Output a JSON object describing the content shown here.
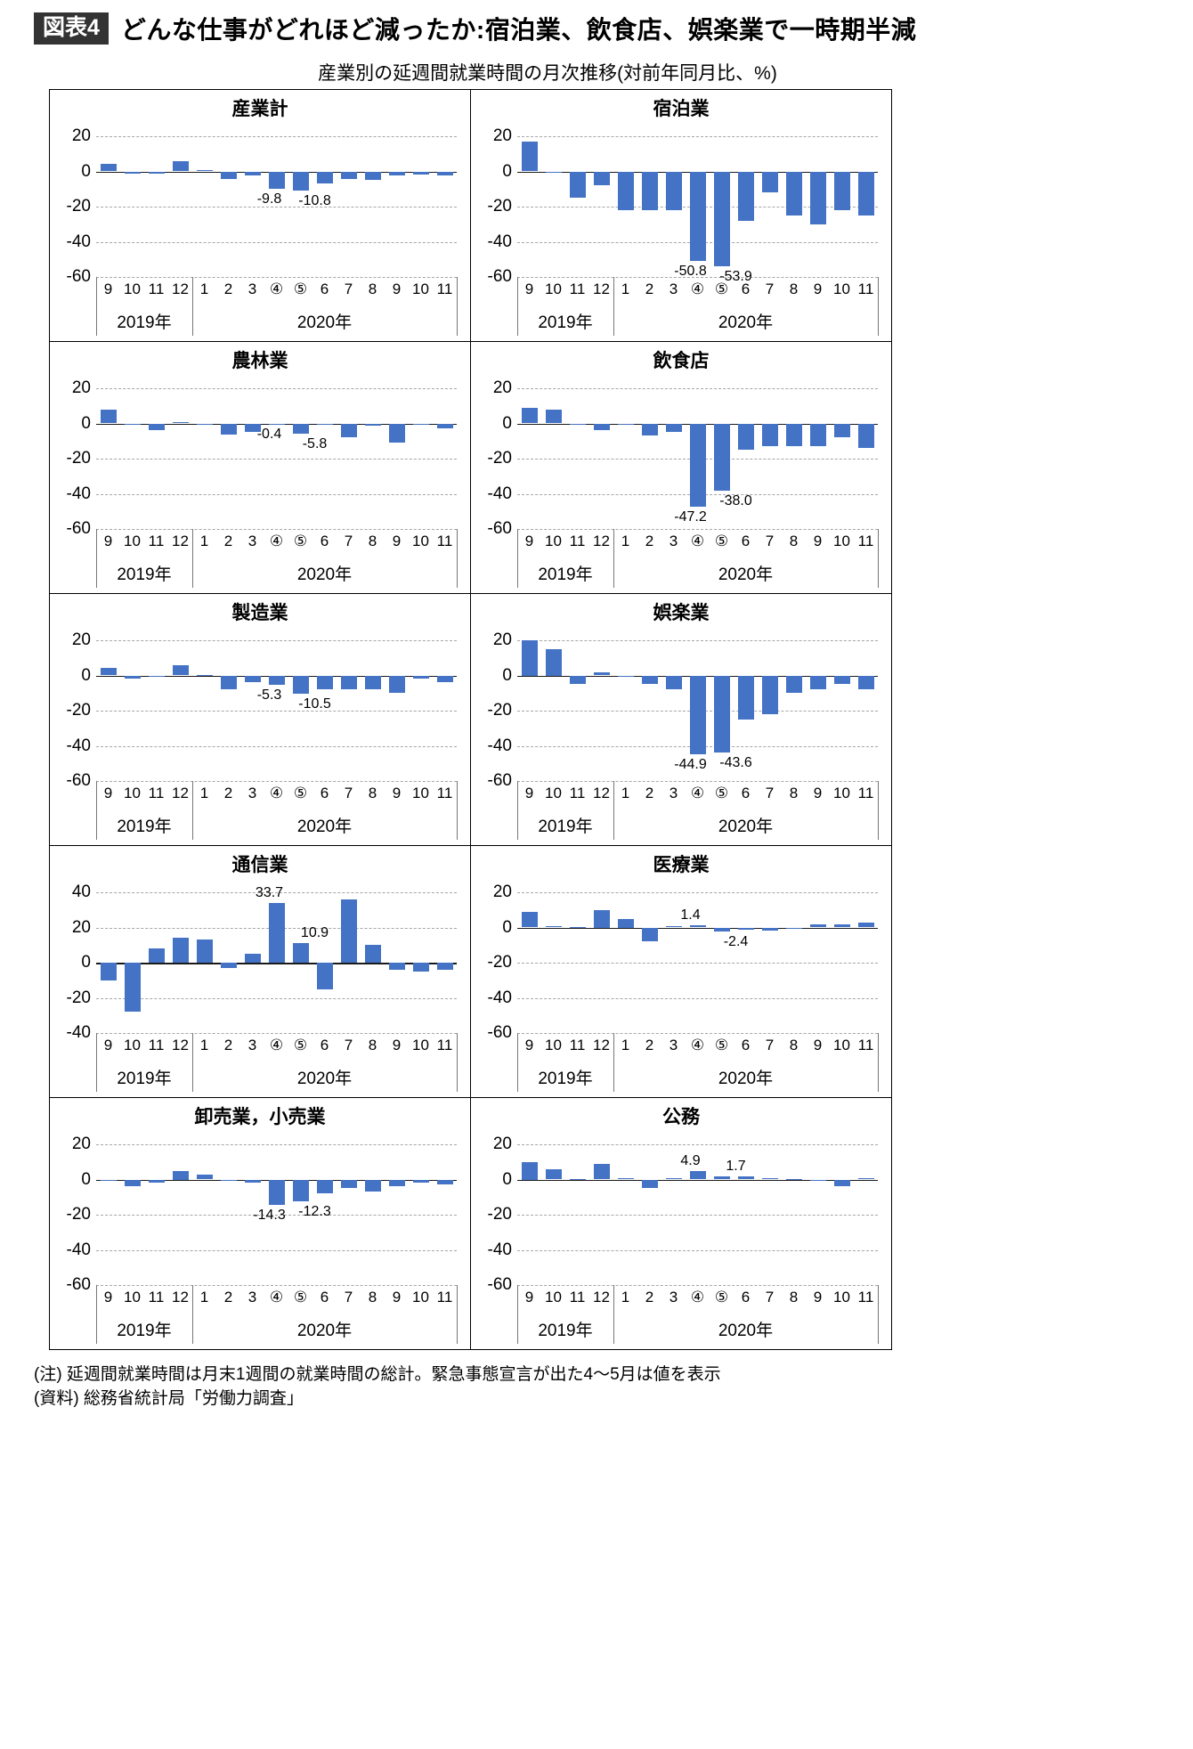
{
  "header": {
    "tag": "図表4",
    "title": "どんな仕事がどれほど減ったか:宿泊業、飲食店、娯楽業で一時期半減",
    "subtitle": "産業別の延週間就業時間の月次推移(対前年同月比、%)"
  },
  "year_labels": {
    "y2019": "2019年",
    "y2020": "2020年"
  },
  "colors": {
    "bar": "#4472C4",
    "tag_bg": "#333333",
    "gridline": "#a6a6a6"
  },
  "footnotes": [
    "(注) 延週間就業時間は月末1週間の就業時間の総計。緊急事態宣言が出た4〜5月は値を表示",
    "(資料) 総務省統計局「労働力調査」"
  ],
  "chart_data": [
    {
      "id": "all-industries",
      "type": "bar",
      "title": "産業計",
      "categories": [
        "9",
        "10",
        "11",
        "12",
        "1",
        "2",
        "3",
        "④",
        "⑤",
        "6",
        "7",
        "8",
        "9",
        "10",
        "11"
      ],
      "ylim": [
        -60,
        20
      ],
      "yticks": [
        20,
        0,
        -20,
        -40,
        -60
      ],
      "values": [
        4.5,
        -1.2,
        -1.2,
        6,
        1,
        -4.5,
        -2.5,
        -9.8,
        -10.8,
        -7,
        -4.5,
        -5,
        -2.5,
        -2,
        -2.5
      ],
      "annotations": [
        {
          "slot": 7,
          "label": "-9.8",
          "value": -9.8
        },
        {
          "slot": 8,
          "label": "-10.8",
          "value": -10.8
        }
      ]
    },
    {
      "id": "accommodation",
      "type": "bar",
      "title": "宿泊業",
      "categories": [
        "9",
        "10",
        "11",
        "12",
        "1",
        "2",
        "3",
        "④",
        "⑤",
        "6",
        "7",
        "8",
        "9",
        "10",
        "11"
      ],
      "ylim": [
        -60,
        20
      ],
      "yticks": [
        20,
        0,
        -20,
        -40,
        -60
      ],
      "values": [
        17,
        -1,
        -15,
        -8,
        -22,
        -22,
        -22,
        -50.8,
        -53.9,
        -28,
        -12,
        -25,
        -30,
        -22,
        -25
      ],
      "annotations": [
        {
          "slot": 7,
          "label": "-50.8",
          "value": -50.8
        },
        {
          "slot": 8,
          "label": "-53.9",
          "value": -53.9
        }
      ]
    },
    {
      "id": "agriculture-forestry",
      "type": "bar",
      "title": "農林業",
      "categories": [
        "9",
        "10",
        "11",
        "12",
        "1",
        "2",
        "3",
        "④",
        "⑤",
        "6",
        "7",
        "8",
        "9",
        "10",
        "11"
      ],
      "ylim": [
        -60,
        20
      ],
      "yticks": [
        20,
        0,
        -20,
        -40,
        -60
      ],
      "values": [
        8,
        -0.5,
        -4,
        1,
        -0.5,
        -6.5,
        -5,
        -0.4,
        -5.8,
        -1,
        -8,
        -1.5,
        -11,
        -1,
        -3
      ],
      "annotations": [
        {
          "slot": 7,
          "label": "-0.4",
          "value": -0.4
        },
        {
          "slot": 8,
          "label": "-5.8",
          "value": -5.8
        }
      ]
    },
    {
      "id": "restaurants",
      "type": "bar",
      "title": "飲食店",
      "categories": [
        "9",
        "10",
        "11",
        "12",
        "1",
        "2",
        "3",
        "④",
        "⑤",
        "6",
        "7",
        "8",
        "9",
        "10",
        "11"
      ],
      "ylim": [
        -60,
        20
      ],
      "yticks": [
        20,
        0,
        -20,
        -40,
        -60
      ],
      "values": [
        9,
        8,
        -1,
        -4,
        -1,
        -7,
        -5,
        -47.2,
        -38,
        -15,
        -13,
        -13,
        -13,
        -8,
        -14
      ],
      "annotations": [
        {
          "slot": 7,
          "label": "-47.2",
          "value": -47.2
        },
        {
          "slot": 8,
          "label": "-38.0",
          "value": -38.0
        }
      ]
    },
    {
      "id": "manufacturing",
      "type": "bar",
      "title": "製造業",
      "categories": [
        "9",
        "10",
        "11",
        "12",
        "1",
        "2",
        "3",
        "④",
        "⑤",
        "6",
        "7",
        "8",
        "9",
        "10",
        "11"
      ],
      "ylim": [
        -60,
        20
      ],
      "yticks": [
        20,
        0,
        -20,
        -40,
        -60
      ],
      "values": [
        4.5,
        -2,
        -1,
        6,
        0.5,
        -8,
        -4,
        -5.3,
        -10.5,
        -8,
        -8,
        -8,
        -10,
        -2,
        -4
      ],
      "annotations": [
        {
          "slot": 7,
          "label": "-5.3",
          "value": -5.3
        },
        {
          "slot": 8,
          "label": "-10.5",
          "value": -10.5
        }
      ]
    },
    {
      "id": "entertainment",
      "type": "bar",
      "title": "娯楽業",
      "categories": [
        "9",
        "10",
        "11",
        "12",
        "1",
        "2",
        "3",
        "④",
        "⑤",
        "6",
        "7",
        "8",
        "9",
        "10",
        "11"
      ],
      "ylim": [
        -60,
        20
      ],
      "yticks": [
        20,
        0,
        -20,
        -40,
        -60
      ],
      "values": [
        20,
        15,
        -5,
        2,
        -1,
        -5,
        -8,
        -44.9,
        -43.6,
        -25,
        -22,
        -10,
        -8,
        -5,
        -8
      ],
      "annotations": [
        {
          "slot": 7,
          "label": "-44.9",
          "value": -44.9
        },
        {
          "slot": 8,
          "label": "-43.6",
          "value": -43.6
        }
      ]
    },
    {
      "id": "communications",
      "type": "bar",
      "title": "通信業",
      "categories": [
        "9",
        "10",
        "11",
        "12",
        "1",
        "2",
        "3",
        "④",
        "⑤",
        "6",
        "7",
        "8",
        "9",
        "10",
        "11"
      ],
      "ylim": [
        -40,
        40
      ],
      "yticks": [
        40,
        20,
        0,
        -20,
        -40
      ],
      "values": [
        -10,
        -28,
        8,
        14,
        13,
        -3,
        5,
        33.7,
        10.9,
        -15,
        36,
        10,
        -4,
        -5,
        -4
      ],
      "annotations": [
        {
          "slot": 7,
          "label": "33.7",
          "value": 33.7
        },
        {
          "slot": 8,
          "label": "10.9",
          "value": 10.9
        }
      ]
    },
    {
      "id": "medical",
      "type": "bar",
      "title": "医療業",
      "categories": [
        "9",
        "10",
        "11",
        "12",
        "1",
        "2",
        "3",
        "④",
        "⑤",
        "6",
        "7",
        "8",
        "9",
        "10",
        "11"
      ],
      "ylim": [
        -60,
        20
      ],
      "yticks": [
        20,
        0,
        -20,
        -40,
        -60
      ],
      "values": [
        9,
        1,
        0.5,
        10,
        5,
        -8,
        1,
        1.4,
        -2.4,
        -1.5,
        -2,
        -1,
        2,
        2,
        3
      ],
      "annotations": [
        {
          "slot": 7,
          "label": "1.4",
          "value": 1.4
        },
        {
          "slot": 8,
          "label": "-2.4",
          "value": -2.4
        }
      ]
    },
    {
      "id": "wholesale-retail",
      "type": "bar",
      "title": "卸売業，小売業",
      "categories": [
        "9",
        "10",
        "11",
        "12",
        "1",
        "2",
        "3",
        "④",
        "⑤",
        "6",
        "7",
        "8",
        "9",
        "10",
        "11"
      ],
      "ylim": [
        -60,
        20
      ],
      "yticks": [
        20,
        0,
        -20,
        -40,
        -60
      ],
      "values": [
        -1,
        -4,
        -2,
        5,
        3,
        -1,
        -2,
        -14.3,
        -12.3,
        -8,
        -5,
        -7,
        -4,
        -2,
        -3
      ],
      "annotations": [
        {
          "slot": 7,
          "label": "-14.3",
          "value": -14.3
        },
        {
          "slot": 8,
          "label": "-12.3",
          "value": -12.3
        }
      ]
    },
    {
      "id": "public-service",
      "type": "bar",
      "title": "公務",
      "categories": [
        "9",
        "10",
        "11",
        "12",
        "1",
        "2",
        "3",
        "④",
        "⑤",
        "6",
        "7",
        "8",
        "9",
        "10",
        "11"
      ],
      "ylim": [
        -60,
        20
      ],
      "yticks": [
        20,
        0,
        -20,
        -40,
        -60
      ],
      "values": [
        10,
        6,
        0.5,
        9,
        1,
        -5,
        1,
        4.9,
        1.7,
        2,
        1,
        0.5,
        -0.5,
        -4,
        1
      ],
      "annotations": [
        {
          "slot": 7,
          "label": "4.9",
          "value": 4.9
        },
        {
          "slot": 8,
          "label": "1.7",
          "value": 1.7
        }
      ]
    }
  ]
}
